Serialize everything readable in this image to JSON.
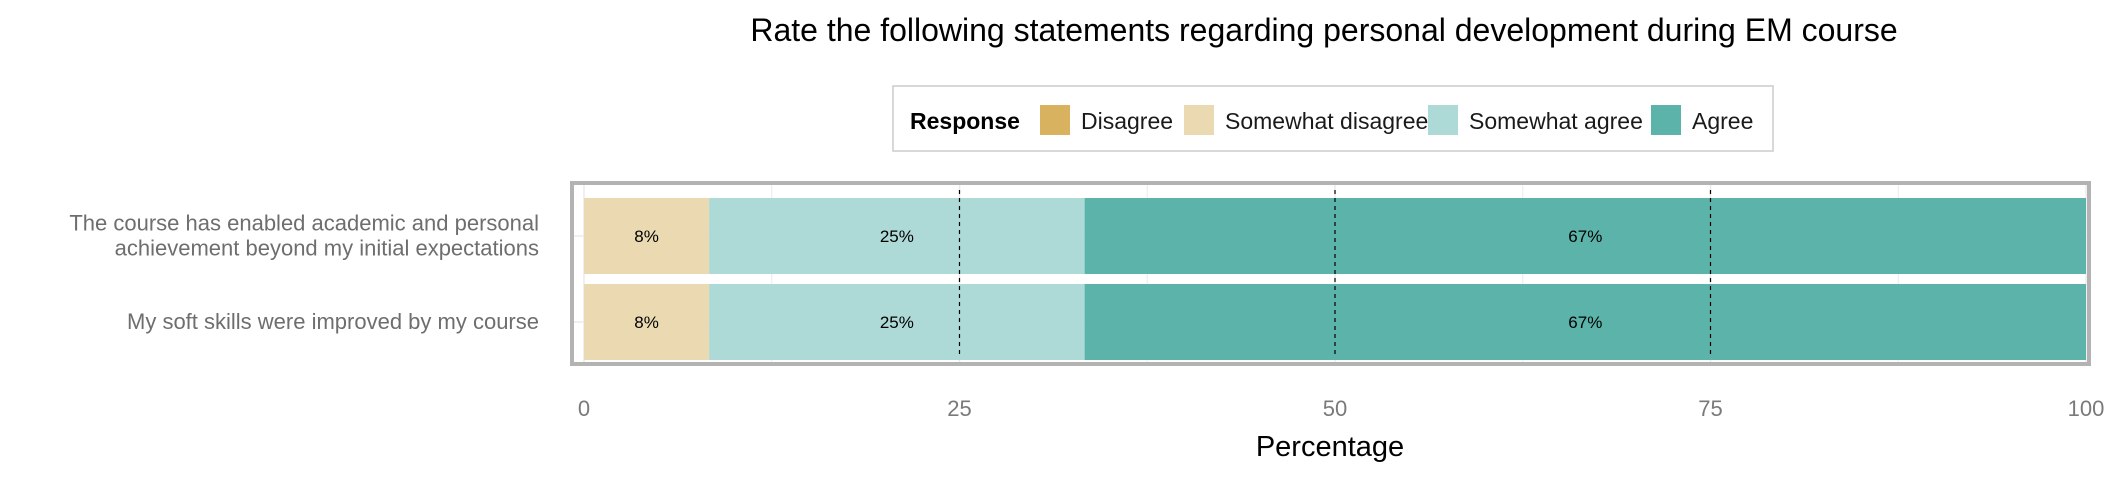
{
  "chart_data": {
    "type": "bar",
    "orientation": "horizontal",
    "stacked": true,
    "title": "Rate the following statements regarding personal development during EM course",
    "xlabel": "Percentage",
    "ylabel": "",
    "xlim": [
      0,
      100
    ],
    "x_ticks": [
      "0",
      "25",
      "50",
      "75",
      "100"
    ],
    "grid": true,
    "legend_position": "top",
    "legend_title": "Response",
    "legend": [
      {
        "name": "Disagree",
        "color": "#D9B25F"
      },
      {
        "name": "Somewhat disagree",
        "color": "#EBD9B2"
      },
      {
        "name": "Somewhat agree",
        "color": "#ADD9D6"
      },
      {
        "name": "Agree",
        "color": "#5BB3AA"
      }
    ],
    "categories": [
      [
        "The course has enabled academic and personal",
        "achievement beyond my initial expectations"
      ],
      [
        "My soft skills were improved by my course"
      ]
    ],
    "series": [
      {
        "name": "Disagree",
        "color": "#D9B25F",
        "values": [
          0,
          0
        ],
        "labels": [
          "",
          ""
        ]
      },
      {
        "name": "Somewhat disagree",
        "color": "#EBD9B2",
        "values": [
          8.33,
          8.33
        ],
        "labels": [
          "8%",
          "8%"
        ]
      },
      {
        "name": "Somewhat agree",
        "color": "#ADD9D6",
        "values": [
          25,
          25
        ],
        "labels": [
          "25%",
          "25%"
        ]
      },
      {
        "name": "Agree",
        "color": "#5BB3AA",
        "values": [
          66.67,
          66.67
        ],
        "labels": [
          "67%",
          "67%"
        ]
      }
    ]
  }
}
